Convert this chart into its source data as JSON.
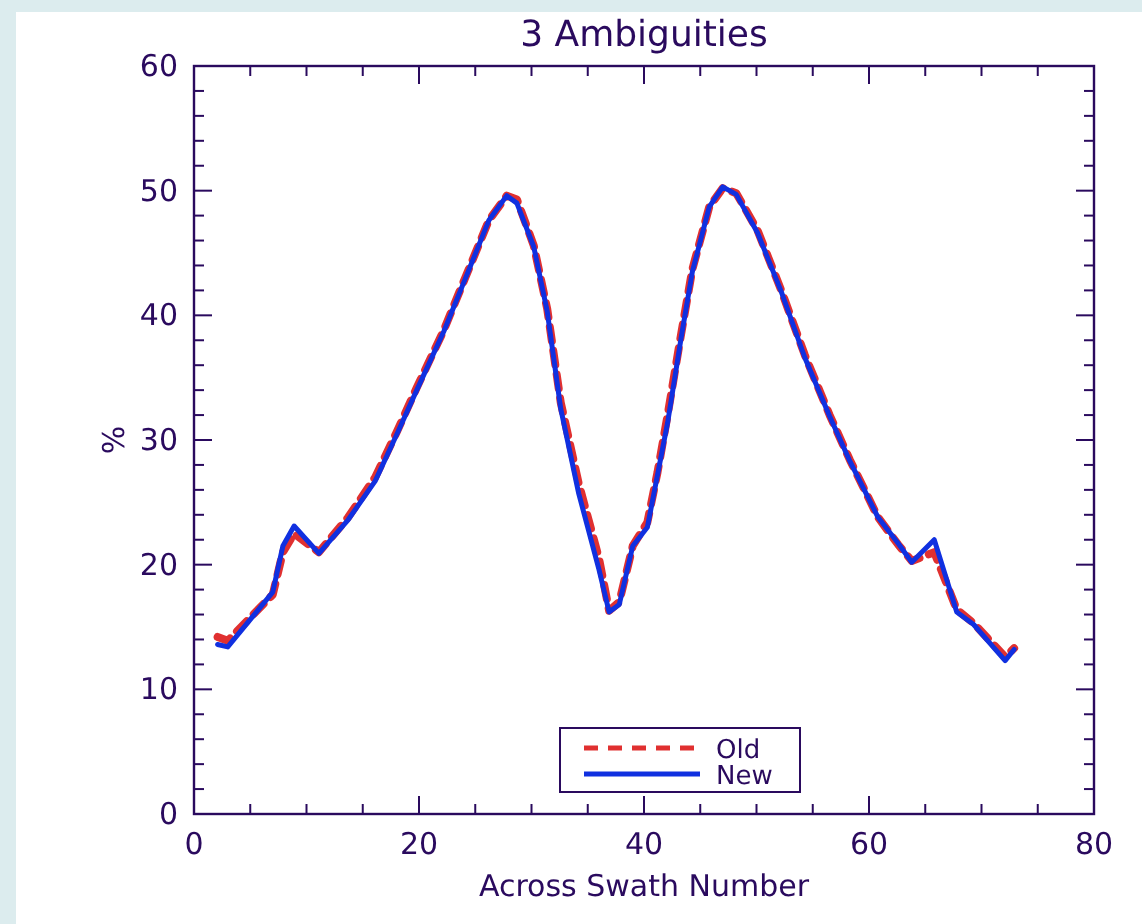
{
  "chart_data": {
    "type": "line",
    "title": "3 Ambiguities",
    "xlabel": "Across Swath Number",
    "ylabel": "%",
    "xlim": [
      0,
      80
    ],
    "ylim": [
      0,
      60
    ],
    "xticks": [
      0,
      {
        "value": 5,
        "label": null
      },
      {
        "value": 10,
        "label": null
      },
      {
        "value": 15,
        "label": null
      },
      20,
      {
        "value": 25,
        "label": null
      },
      {
        "value": 30,
        "label": null
      },
      {
        "value": 35,
        "label": null
      },
      40,
      {
        "value": 45,
        "label": null
      },
      {
        "value": 50,
        "label": null
      },
      {
        "value": 55,
        "label": null
      },
      60,
      {
        "value": 65,
        "label": null
      },
      {
        "value": 70,
        "label": null
      },
      {
        "value": 75,
        "label": null
      },
      80
    ],
    "yticks": [
      0,
      {
        "value": 2,
        "label": null
      },
      {
        "value": 4,
        "label": null
      },
      {
        "value": 6,
        "label": null
      },
      {
        "value": 8,
        "label": null
      },
      10,
      {
        "value": 12,
        "label": null
      },
      {
        "value": 14,
        "label": null
      },
      {
        "value": 16,
        "label": null
      },
      {
        "value": 18,
        "label": null
      },
      20,
      {
        "value": 22,
        "label": null
      },
      {
        "value": 24,
        "label": null
      },
      {
        "value": 26,
        "label": null
      },
      {
        "value": 28,
        "label": null
      },
      30,
      {
        "value": 32,
        "label": null
      },
      {
        "value": 34,
        "label": null
      },
      {
        "value": 36,
        "label": null
      },
      {
        "value": 38,
        "label": null
      },
      40,
      {
        "value": 42,
        "label": null
      },
      {
        "value": 44,
        "label": null
      },
      {
        "value": 46,
        "label": null
      },
      {
        "value": 48,
        "label": null
      },
      50,
      {
        "value": 52,
        "label": null
      },
      {
        "value": 54,
        "label": null
      },
      {
        "value": 56,
        "label": null
      },
      {
        "value": 58,
        "label": null
      },
      60
    ],
    "legend": "bottom",
    "marker": "none",
    "series": [
      {
        "name": "Old",
        "color": "#e03030",
        "line_style": "dashed",
        "x": [
          2.1,
          3,
          7,
          7.9,
          8.9,
          11.1,
          13.7,
          16.1,
          18,
          19.8,
          22.2,
          24.1,
          26.2,
          27.8,
          28.7,
          30.2,
          31.4,
          32.6,
          34.2,
          36,
          36.9,
          37.8,
          39,
          40.3,
          41.2,
          42.1,
          43.3,
          44.3,
          45.8,
          47,
          48.2,
          50.1,
          52.2,
          54.3,
          56.5,
          58.3,
          60.8,
          62.6,
          63.8,
          65.8,
          67.8,
          69.3,
          72.1,
          72.9
        ],
        "values": [
          14.2,
          13.9,
          17.6,
          21,
          22.5,
          21,
          23.8,
          27,
          30.6,
          34.2,
          38.8,
          43,
          47.6,
          49.6,
          49.3,
          45.6,
          40.5,
          33,
          26.5,
          20.5,
          16.3,
          17,
          21.5,
          23.4,
          27.4,
          32,
          38.5,
          43.7,
          48.7,
          50.2,
          49.8,
          46.8,
          42,
          36.8,
          32,
          28.4,
          23.8,
          21.6,
          20.3,
          21,
          16.4,
          15.3,
          12.6,
          13.3
        ]
      },
      {
        "name": "New",
        "color": "#1030e0",
        "line_style": "solid",
        "x": [
          2.1,
          3,
          7,
          7.9,
          8.9,
          11.1,
          13.7,
          16.1,
          18,
          19.8,
          22.2,
          24.1,
          26.2,
          27.8,
          28.7,
          30.2,
          31.4,
          32.6,
          34.2,
          36,
          36.9,
          37.8,
          39,
          40.3,
          41.2,
          42.1,
          43.3,
          44.3,
          45.8,
          47,
          48.2,
          50.1,
          52.2,
          54.3,
          56.5,
          58.3,
          60.8,
          62.6,
          63.8,
          65.8,
          67.8,
          69.3,
          72.1,
          72.9
        ],
        "values": [
          13.6,
          13.4,
          17.8,
          21.5,
          23.1,
          20.9,
          23.6,
          26.7,
          30.4,
          34,
          38.7,
          42.9,
          47.6,
          49.6,
          49,
          45.5,
          40.3,
          32.5,
          25.7,
          19.6,
          16.2,
          16.8,
          21.5,
          23,
          27.2,
          31.4,
          38.2,
          43.5,
          48.7,
          50.3,
          49.7,
          46.6,
          41.9,
          36.6,
          31.9,
          28.3,
          23.8,
          21.7,
          20.2,
          22,
          16.2,
          15.2,
          12.3,
          13.2
        ]
      }
    ]
  }
}
